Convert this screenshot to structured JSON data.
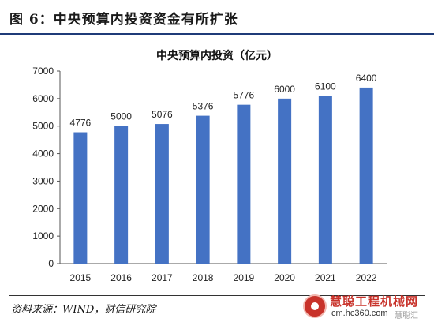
{
  "figure": {
    "caption": "图 6：中央预算内投资资金有所扩张",
    "source": "资料来源：WIND，财信研究院"
  },
  "watermark": {
    "brand": "慧聪工程机械网",
    "url": "cm.hc360.com",
    "sub": "慧聪汇"
  },
  "colors": {
    "bar": "#4472c4",
    "header_rule": "#1f3b78",
    "watermark": "#c8322a"
  },
  "chart_data": {
    "type": "bar",
    "title": "中央预算内投资（亿元）",
    "xlabel": "",
    "ylabel": "",
    "categories": [
      "2015",
      "2016",
      "2017",
      "2018",
      "2019",
      "2020",
      "2021",
      "2022"
    ],
    "values": [
      4776,
      5000,
      5076,
      5376,
      5776,
      6000,
      6100,
      6400
    ],
    "data_labels": [
      "4776",
      "5000",
      "5076",
      "5376",
      "5776",
      "6000",
      "6100",
      "6400"
    ],
    "yticks": [
      "0",
      "1000",
      "2000",
      "3000",
      "4000",
      "5000",
      "6000",
      "7000"
    ],
    "ylim": [
      0,
      7000
    ],
    "grid": false,
    "legend": "none"
  }
}
